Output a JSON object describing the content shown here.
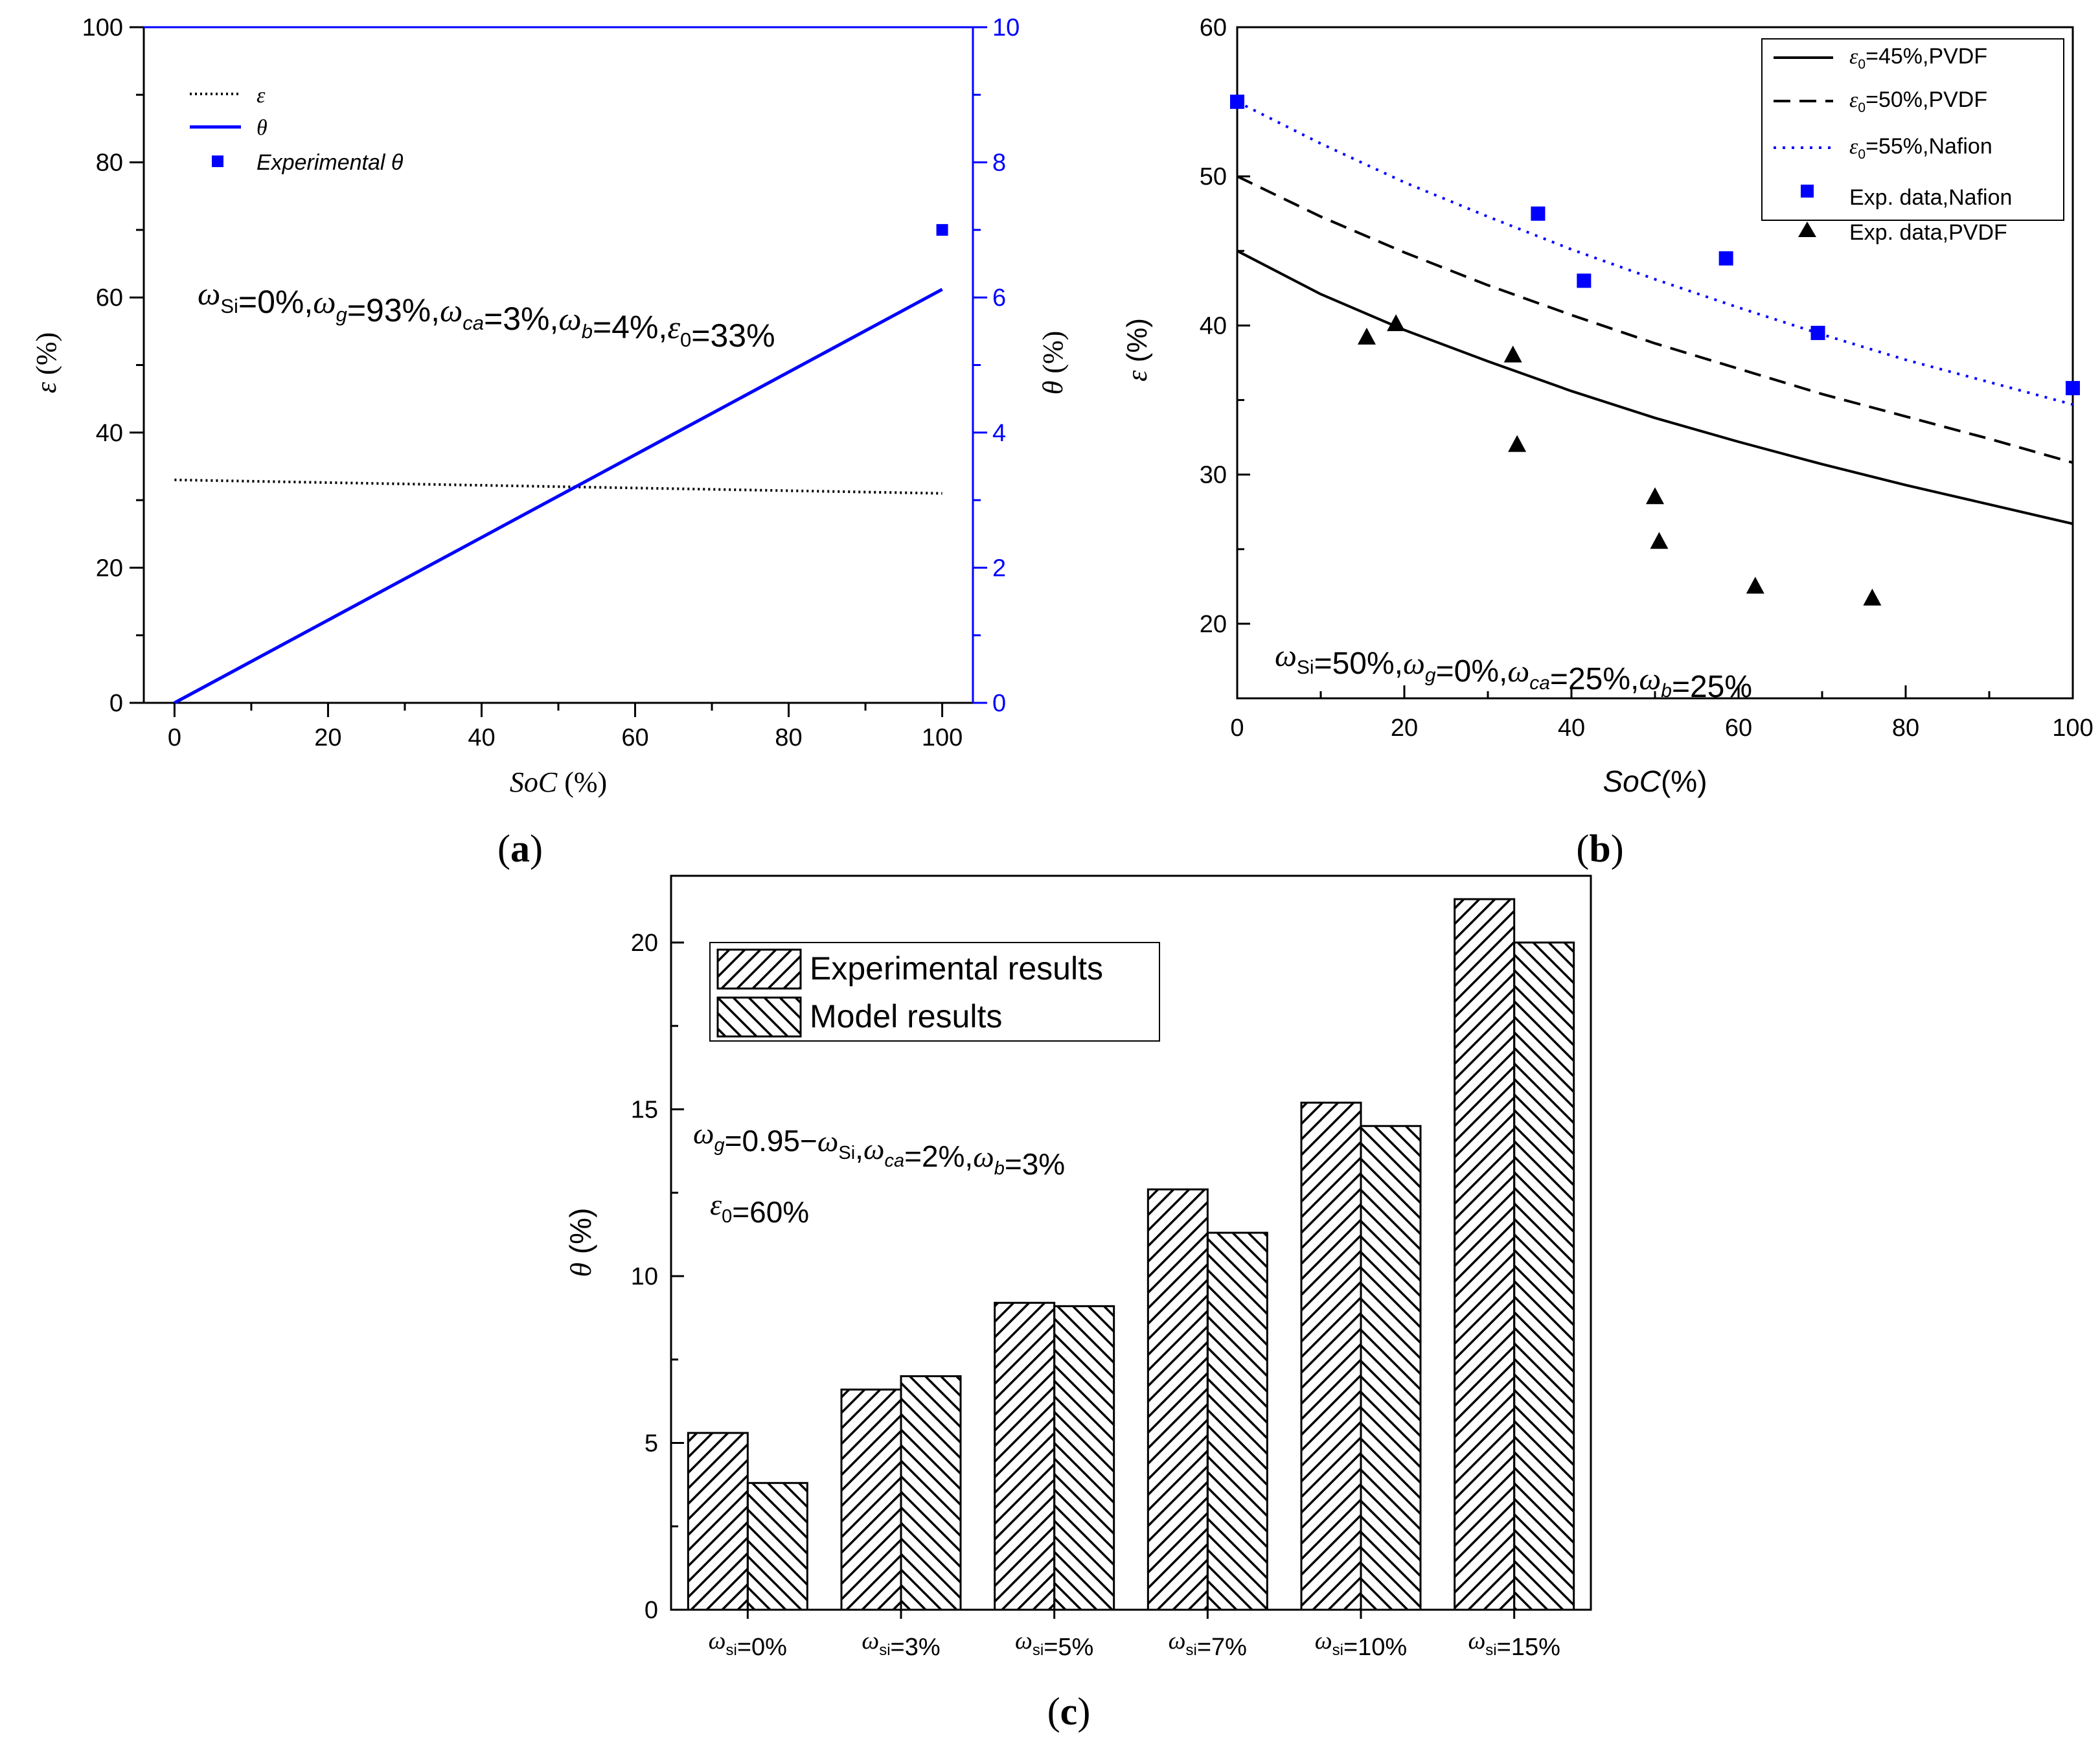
{
  "chart_data": [
    {
      "id": "a",
      "type": "line",
      "panel_label": "a",
      "xlabel": "SoC",
      "xlabel_unit": " (%)",
      "ylabel": "ε",
      "ylabel_unit": " (%)",
      "y2label": "θ",
      "y2label_unit": " (%)",
      "xlim": [
        -4,
        104
      ],
      "ylim": [
        0,
        100
      ],
      "y2lim": [
        0,
        10
      ],
      "xticks": [
        0,
        20,
        40,
        60,
        80,
        100
      ],
      "yticks": [
        0,
        20,
        40,
        60,
        80,
        100
      ],
      "y2ticks": [
        0,
        2,
        4,
        6,
        8,
        10
      ],
      "series": [
        {
          "name": "ε",
          "axis": "left",
          "style": "dotted",
          "color": "#000000",
          "x": [
            0,
            100
          ],
          "y": [
            33,
            31
          ]
        },
        {
          "name": "θ",
          "axis": "right",
          "style": "solid",
          "color": "#0000ff",
          "x": [
            0,
            100
          ],
          "y": [
            0,
            6.12
          ]
        },
        {
          "name": "Experimental θ",
          "axis": "right",
          "style": "marker-square",
          "color": "#0000ff",
          "x": [
            100
          ],
          "y": [
            7.0
          ]
        }
      ],
      "legend": [
        "ε",
        "θ",
        "Experimental θ"
      ],
      "annotation": "ω_Si=0%,ω_g=93%,ω_ca=3%,ω_b=4%,ε_0=33%"
    },
    {
      "id": "b",
      "type": "line",
      "panel_label": "b",
      "xlabel": "SoC",
      "xlabel_unit": "(%)",
      "ylabel": "ε",
      "ylabel_unit": " (%)",
      "xlim": [
        0,
        100
      ],
      "ylim": [
        15,
        60
      ],
      "xticks": [
        0,
        20,
        40,
        60,
        80,
        100
      ],
      "yticks": [
        20,
        30,
        40,
        50,
        60
      ],
      "series": [
        {
          "name": "ε0=45%,PVDF",
          "style": "solid",
          "color": "#000000",
          "x": [
            0,
            10,
            20,
            30,
            40,
            50,
            60,
            70,
            80,
            90,
            100
          ],
          "y": [
            45,
            42.1,
            39.7,
            37.6,
            35.6,
            33.8,
            32.2,
            30.7,
            29.3,
            28,
            26.7
          ]
        },
        {
          "name": "ε0=50%,PVDF",
          "style": "dashed",
          "color": "#000000",
          "x": [
            0,
            10,
            20,
            30,
            40,
            50,
            60,
            70,
            80,
            90,
            100
          ],
          "y": [
            50,
            47.3,
            44.9,
            42.7,
            40.7,
            38.8,
            37.1,
            35.4,
            33.9,
            32.4,
            30.8
          ]
        },
        {
          "name": "ε0=55%,Nafion",
          "style": "dotted",
          "color": "#0000ff",
          "x": [
            0,
            10,
            20,
            30,
            40,
            50,
            60,
            70,
            80,
            90,
            100
          ],
          "y": [
            55,
            52.2,
            49.6,
            47.3,
            45.1,
            43.1,
            41.2,
            39.4,
            37.7,
            36.2,
            34.7
          ]
        },
        {
          "name": "Exp. data,Nafion",
          "style": "marker-square",
          "color": "#0000ff",
          "x": [
            0,
            36,
            41.5,
            58.5,
            69.5,
            100
          ],
          "y": [
            55,
            47.5,
            43,
            44.5,
            39.5,
            35.8
          ]
        },
        {
          "name": "Exp. data,PVDF",
          "style": "marker-triangle",
          "color": "#000000",
          "x": [
            15.5,
            19,
            33,
            33.5,
            50,
            50.5,
            62,
            76
          ],
          "y": [
            39.2,
            40.1,
            38,
            32,
            28.5,
            25.5,
            22.5,
            21.7
          ]
        }
      ],
      "legend": [
        "ε0=45%,PVDF",
        "ε0=50%,PVDF",
        "ε0=55%,Nafion",
        "Exp. data,Nafion",
        "Exp. data,PVDF"
      ],
      "annotation": "ω_Si=50%,ω_g=0%,ω_ca=25%,ω_b=25%"
    },
    {
      "id": "c",
      "type": "bar",
      "panel_label": "c",
      "ylabel": "θ",
      "ylabel_unit": " (%)",
      "ylim": [
        0,
        22
      ],
      "yticks": [
        0,
        5,
        10,
        15,
        20
      ],
      "categories": [
        "ω_si=0%",
        "ω_si=3%",
        "ω_si=5%",
        "ω_si=7%",
        "ω_si=10%",
        "ω_si=15%"
      ],
      "series": [
        {
          "name": "Experimental results",
          "pattern": "hatch-forward",
          "values": [
            5.3,
            6.6,
            9.2,
            12.6,
            15.2,
            21.3
          ]
        },
        {
          "name": "Model results",
          "pattern": "hatch-back",
          "values": [
            3.8,
            7.0,
            9.1,
            11.3,
            14.5,
            20.0
          ]
        }
      ],
      "legend": [
        "Experimental results",
        "Model results"
      ],
      "annotation_1": "ω_g=0.95−ω_Si,ω_ca=2%,ω_b=3%",
      "annotation_2": "ε_0=60%"
    }
  ]
}
